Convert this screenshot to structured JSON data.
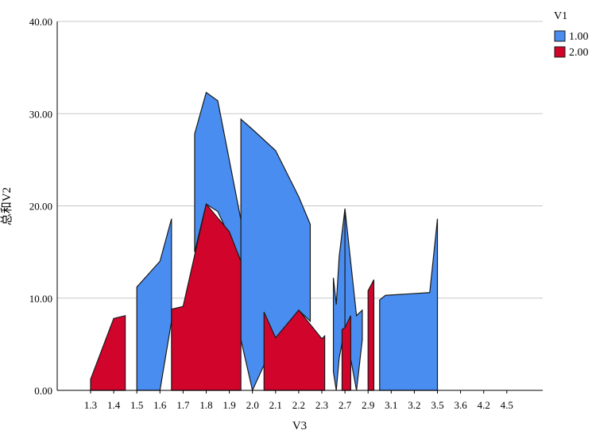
{
  "chart_data": {
    "type": "area",
    "xlabel": "V3",
    "ylabel": "总和V2",
    "categories": [
      "1.3",
      "1.4",
      "1.5",
      "1.6",
      "1.7",
      "1.8",
      "1.9",
      "2.0",
      "2.1",
      "2.2",
      "2.3",
      "2.7",
      "2.9",
      "3.1",
      "3.2",
      "3.5",
      "3.6",
      "4.2",
      "4.5"
    ],
    "ylim": [
      0,
      40
    ],
    "yticks": [
      "0.00",
      "10.00",
      "20.00",
      "30.00",
      "40.00"
    ],
    "grid": true,
    "legend": {
      "title": "V1",
      "placement": "top-right"
    },
    "series": [
      {
        "name": "1.00",
        "color": "#4a8df0",
        "segments": [
          {
            "x": [
              1.5,
              1.6,
              1.65
            ],
            "top": [
              11.2,
              14.0,
              18.6
            ],
            "bottom": [
              0.0,
              0.0,
              7.5
            ]
          },
          {
            "x": [
              1.75,
              1.8,
              1.85,
              1.95
            ],
            "top": [
              27.8,
              32.3,
              31.4,
              18.5
            ],
            "bottom": [
              15.0,
              20.2,
              19.4,
              14.0
            ]
          },
          {
            "x": [
              1.95,
              2.0,
              2.1,
              2.2,
              2.25
            ],
            "top": [
              29.4,
              28.3,
              26.0,
              21.0,
              18.0
            ],
            "bottom": [
              5.5,
              0.0,
              5.5,
              8.7,
              7.5
            ]
          },
          {
            "x": [
              2.5,
              2.55,
              2.6,
              2.7
            ],
            "top": [
              12.2,
              9.3,
              14.5,
              19.7
            ],
            "bottom": [
              2.0,
              0.0,
              3.5,
              6.8
            ]
          },
          {
            "x": [
              2.7,
              2.8,
              2.85
            ],
            "top": [
              19.7,
              8.1,
              8.7
            ],
            "bottom": [
              6.8,
              0.0,
              5.5
            ]
          },
          {
            "x": [
              3.0,
              3.05,
              3.4,
              3.5
            ],
            "top": [
              9.8,
              10.3,
              10.6,
              18.6
            ],
            "bottom": [
              0.0,
              0.0,
              0.0,
              0.0
            ]
          }
        ]
      },
      {
        "name": "2.00",
        "color": "#d1042c",
        "segments": [
          {
            "x": [
              1.3,
              1.4,
              1.45
            ],
            "top": [
              1.2,
              7.8,
              8.1
            ],
            "bottom": [
              0.0,
              0.0,
              0.0
            ]
          },
          {
            "x": [
              1.65,
              1.7,
              1.8,
              1.9,
              1.95
            ],
            "top": [
              8.8,
              9.1,
              20.2,
              17.2,
              14.0
            ],
            "bottom": [
              0.0,
              0.0,
              0.0,
              0.0,
              0.0
            ]
          },
          {
            "x": [
              2.05,
              2.1,
              2.2,
              2.3,
              2.35
            ],
            "top": [
              8.5,
              5.7,
              8.7,
              5.6,
              5.9
            ],
            "bottom": [
              0.0,
              0.0,
              0.0,
              0.0,
              0.0
            ]
          },
          {
            "x": [
              2.65,
              2.7,
              2.75
            ],
            "top": [
              6.6,
              6.8,
              8.1
            ],
            "bottom": [
              0.0,
              0.0,
              0.0
            ]
          },
          {
            "x": [
              2.9,
              2.95
            ],
            "top": [
              10.8,
              12.0
            ],
            "bottom": [
              0.0,
              0.0
            ]
          }
        ]
      }
    ]
  }
}
